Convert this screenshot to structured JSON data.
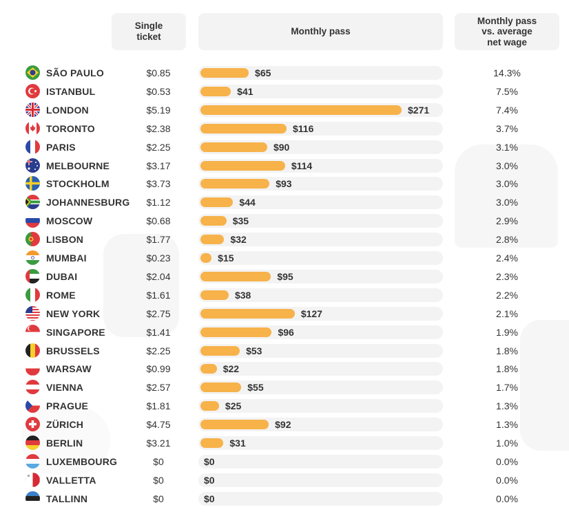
{
  "headers": {
    "single": "Single\nticket",
    "monthly": "Monthly pass",
    "wage": "Monthly pass\nvs. average\nnet wage"
  },
  "chart_data": {
    "type": "bar",
    "title": "",
    "xlabel": "Monthly pass",
    "ylabel": "",
    "xlim": [
      0,
      290
    ],
    "categories": [
      "SÃO PAULO",
      "ISTANBUL",
      "LONDON",
      "TORONTO",
      "PARIS",
      "MELBOURNE",
      "STOCKHOLM",
      "JOHANNESBURG",
      "MOSCOW",
      "LISBON",
      "MUMBAI",
      "DUBAI",
      "ROME",
      "NEW YORK",
      "SINGAPORE",
      "BRUSSELS",
      "WARSAW",
      "VIENNA",
      "PRAGUE",
      "ZÜRICH",
      "BERLIN",
      "LUXEMBOURG",
      "VALLETTA",
      "TALLINN"
    ],
    "values": [
      65,
      41,
      271,
      116,
      90,
      114,
      93,
      44,
      35,
      32,
      15,
      95,
      38,
      127,
      96,
      53,
      22,
      55,
      25,
      92,
      31,
      0,
      0,
      0
    ],
    "rows": [
      {
        "city": "SÃO PAULO",
        "flag": "brazil",
        "single": "$0.85",
        "monthly": 65,
        "monthly_label": "$65",
        "pct": "14.3%"
      },
      {
        "city": "ISTANBUL",
        "flag": "turkey",
        "single": "$0.53",
        "monthly": 41,
        "monthly_label": "$41",
        "pct": "7.5%"
      },
      {
        "city": "LONDON",
        "flag": "uk",
        "single": "$5.19",
        "monthly": 271,
        "monthly_label": "$271",
        "pct": "7.4%"
      },
      {
        "city": "TORONTO",
        "flag": "canada",
        "single": "$2.38",
        "monthly": 116,
        "monthly_label": "$116",
        "pct": "3.7%"
      },
      {
        "city": "PARIS",
        "flag": "france",
        "single": "$2.25",
        "monthly": 90,
        "monthly_label": "$90",
        "pct": "3.1%"
      },
      {
        "city": "MELBOURNE",
        "flag": "australia",
        "single": "$3.17",
        "monthly": 114,
        "monthly_label": "$114",
        "pct": "3.0%"
      },
      {
        "city": "STOCKHOLM",
        "flag": "sweden",
        "single": "$3.73",
        "monthly": 93,
        "monthly_label": "$93",
        "pct": "3.0%"
      },
      {
        "city": "JOHANNESBURG",
        "flag": "south-africa",
        "single": "$1.12",
        "monthly": 44,
        "monthly_label": "$44",
        "pct": "3.0%"
      },
      {
        "city": "MOSCOW",
        "flag": "russia",
        "single": "$0.68",
        "monthly": 35,
        "monthly_label": "$35",
        "pct": "2.9%"
      },
      {
        "city": "LISBON",
        "flag": "portugal",
        "single": "$1.77",
        "monthly": 32,
        "monthly_label": "$32",
        "pct": "2.8%"
      },
      {
        "city": "MUMBAI",
        "flag": "india",
        "single": "$0.23",
        "monthly": 15,
        "monthly_label": "$15",
        "pct": "2.4%"
      },
      {
        "city": "DUBAI",
        "flag": "uae",
        "single": "$2.04",
        "monthly": 95,
        "monthly_label": "$95",
        "pct": "2.3%"
      },
      {
        "city": "ROME",
        "flag": "italy",
        "single": "$1.61",
        "monthly": 38,
        "monthly_label": "$38",
        "pct": "2.2%"
      },
      {
        "city": "NEW YORK",
        "flag": "usa",
        "single": "$2.75",
        "monthly": 127,
        "monthly_label": "$127",
        "pct": "2.1%"
      },
      {
        "city": "SINGAPORE",
        "flag": "singapore",
        "single": "$1.41",
        "monthly": 96,
        "monthly_label": "$96",
        "pct": "1.9%"
      },
      {
        "city": "BRUSSELS",
        "flag": "belgium",
        "single": "$2.25",
        "monthly": 53,
        "monthly_label": "$53",
        "pct": "1.8%"
      },
      {
        "city": "WARSAW",
        "flag": "poland",
        "single": "$0.99",
        "monthly": 22,
        "monthly_label": "$22",
        "pct": "1.8%"
      },
      {
        "city": "VIENNA",
        "flag": "austria",
        "single": "$2.57",
        "monthly": 55,
        "monthly_label": "$55",
        "pct": "1.7%"
      },
      {
        "city": "PRAGUE",
        "flag": "czech",
        "single": "$1.81",
        "monthly": 25,
        "monthly_label": "$25",
        "pct": "1.3%"
      },
      {
        "city": "ZÜRICH",
        "flag": "switzerland",
        "single": "$4.75",
        "monthly": 92,
        "monthly_label": "$92",
        "pct": "1.3%"
      },
      {
        "city": "BERLIN",
        "flag": "germany",
        "single": "$3.21",
        "monthly": 31,
        "monthly_label": "$31",
        "pct": "1.0%"
      },
      {
        "city": "LUXEMBOURG",
        "flag": "luxembourg",
        "single": "$0",
        "monthly": 0,
        "monthly_label": "$0",
        "pct": "0.0%"
      },
      {
        "city": "VALLETTA",
        "flag": "malta",
        "single": "$0",
        "monthly": 0,
        "monthly_label": "$0",
        "pct": "0.0%"
      },
      {
        "city": "TALLINN",
        "flag": "estonia",
        "single": "$0",
        "monthly": 0,
        "monthly_label": "$0",
        "pct": "0.0%"
      }
    ]
  },
  "colors": {
    "bar": "#f7b24a",
    "track": "#f3f3f3",
    "header_bg": "#f3f3f3",
    "text": "#333333"
  }
}
